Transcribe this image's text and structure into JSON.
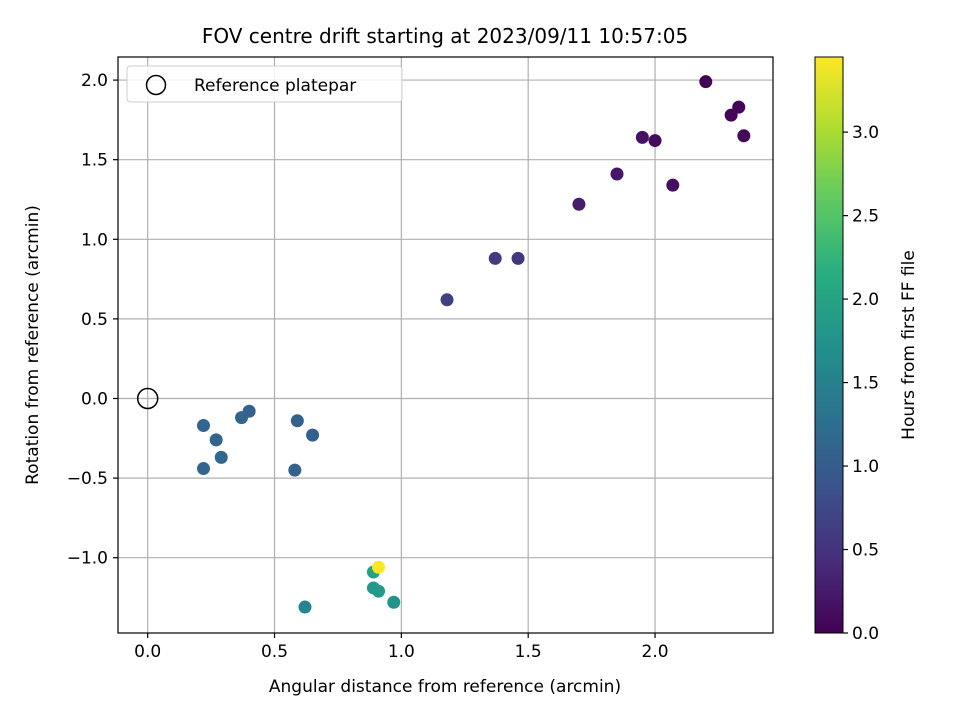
{
  "chart_data": {
    "type": "scatter",
    "title": "FOV centre drift starting at 2023/09/11 10:57:05",
    "xlabel": "Angular distance from reference (arcmin)",
    "ylabel": "Rotation from reference (arcmin)",
    "xlim": [
      -0.117,
      2.465
    ],
    "ylim": [
      -1.473,
      2.145
    ],
    "xticks": [
      0.0,
      0.5,
      1.0,
      1.5,
      2.0
    ],
    "xtick_labels": [
      "0.0",
      "0.5",
      "1.0",
      "1.5",
      "2.0"
    ],
    "yticks": [
      -1.0,
      -0.5,
      0.0,
      0.5,
      1.0,
      1.5,
      2.0
    ],
    "ytick_labels": [
      "−1.0",
      "−0.5",
      "0.0",
      "0.5",
      "1.0",
      "1.5",
      "2.0"
    ],
    "grid": true,
    "legend": {
      "position": "top-left",
      "entries": [
        "Reference platepar"
      ]
    },
    "reference_point": {
      "x": 0.0,
      "y": 0.0,
      "label": "Reference platepar"
    },
    "colorbar": {
      "label": "Hours from first FF file",
      "colormap": "viridis",
      "range": [
        0.0,
        3.45
      ],
      "ticks": [
        0.0,
        0.5,
        1.0,
        1.5,
        2.0,
        2.5,
        3.0
      ],
      "tick_labels": [
        "0.0",
        "0.5",
        "1.0",
        "1.5",
        "2.0",
        "2.5",
        "3.0"
      ]
    },
    "points": [
      {
        "x": 2.2,
        "y": 1.99,
        "hours": 0.0
      },
      {
        "x": 2.33,
        "y": 1.83,
        "hours": 0.03
      },
      {
        "x": 2.3,
        "y": 1.78,
        "hours": 0.05
      },
      {
        "x": 2.35,
        "y": 1.65,
        "hours": 0.07
      },
      {
        "x": 2.0,
        "y": 1.62,
        "hours": 0.1
      },
      {
        "x": 2.07,
        "y": 1.34,
        "hours": 0.13
      },
      {
        "x": 1.95,
        "y": 1.64,
        "hours": 0.18
      },
      {
        "x": 1.85,
        "y": 1.41,
        "hours": 0.22
      },
      {
        "x": 1.7,
        "y": 1.22,
        "hours": 0.26
      },
      {
        "x": 1.46,
        "y": 0.88,
        "hours": 0.55
      },
      {
        "x": 1.37,
        "y": 0.88,
        "hours": 0.6
      },
      {
        "x": 1.18,
        "y": 0.62,
        "hours": 0.65
      },
      {
        "x": 0.59,
        "y": -0.14,
        "hours": 1.05
      },
      {
        "x": 0.65,
        "y": -0.23,
        "hours": 1.05
      },
      {
        "x": 0.58,
        "y": -0.45,
        "hours": 1.08
      },
      {
        "x": 0.4,
        "y": -0.08,
        "hours": 1.08
      },
      {
        "x": 0.37,
        "y": -0.12,
        "hours": 1.1
      },
      {
        "x": 0.22,
        "y": -0.17,
        "hours": 1.12
      },
      {
        "x": 0.27,
        "y": -0.26,
        "hours": 1.12
      },
      {
        "x": 0.29,
        "y": -0.37,
        "hours": 1.15
      },
      {
        "x": 0.22,
        "y": -0.44,
        "hours": 1.15
      },
      {
        "x": 0.62,
        "y": -1.31,
        "hours": 1.55
      },
      {
        "x": 0.97,
        "y": -1.28,
        "hours": 1.75
      },
      {
        "x": 0.89,
        "y": -1.19,
        "hours": 1.82
      },
      {
        "x": 0.91,
        "y": -1.21,
        "hours": 1.85
      },
      {
        "x": 0.89,
        "y": -1.09,
        "hours": 1.95
      },
      {
        "x": 0.91,
        "y": -1.06,
        "hours": 3.45
      }
    ]
  }
}
